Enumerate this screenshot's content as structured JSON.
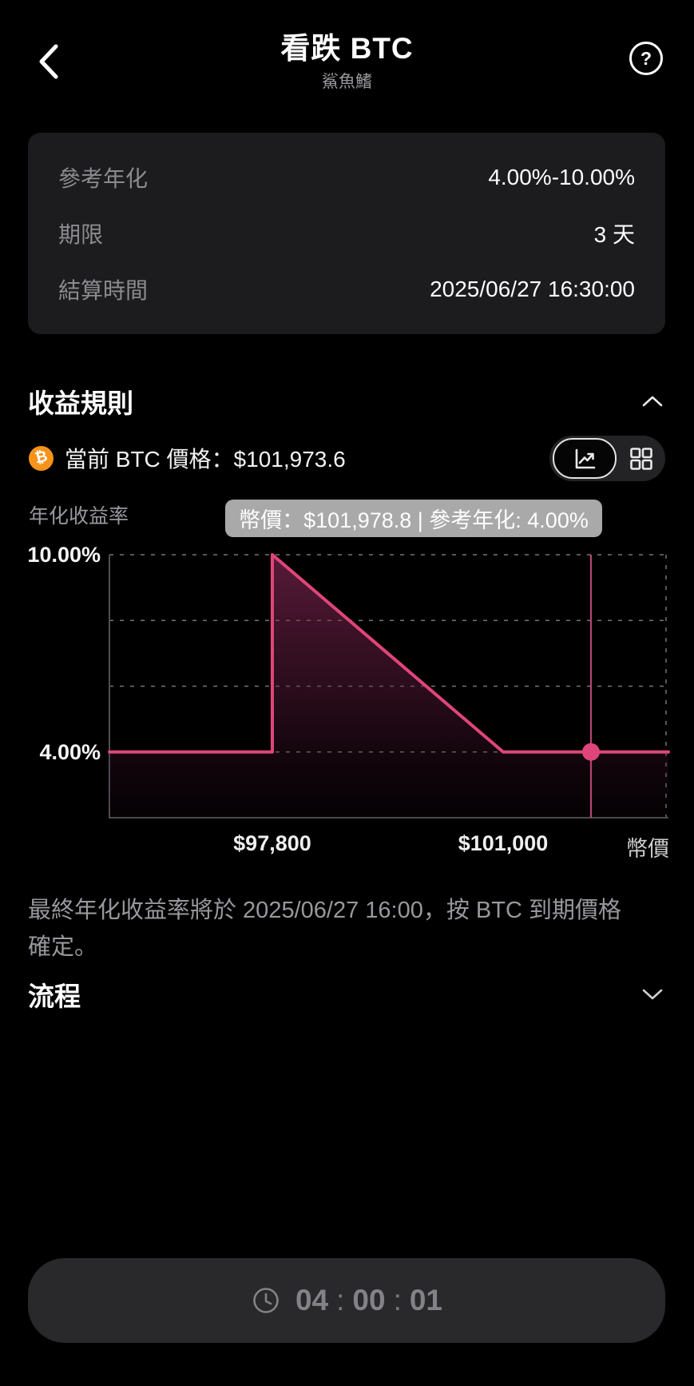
{
  "colors": {
    "accent_pink": "#e0457a",
    "marker_pink": "#b44672",
    "btc_orange": "#f7931a",
    "tooltip_bg": "#a9a9a9",
    "grid_gray": "#8a8a8a",
    "axis_gray": "#4f4f53"
  },
  "header": {
    "title": "看跌 BTC",
    "subtitle": "鯊魚鰭",
    "help_glyph": "?"
  },
  "icons": {
    "btc_glyph": "₿"
  },
  "info_card": {
    "rows": [
      {
        "label": "參考年化",
        "value": "4.00%-10.00%"
      },
      {
        "label": "期限",
        "value": "3 天"
      },
      {
        "label": "結算時間",
        "value": "2025/06/27 16:30:00"
      }
    ]
  },
  "rules_section": {
    "title": "收益規則",
    "current_price_text": "當前 BTC 價格：$101,973.6",
    "y_axis_title": "年化收益率",
    "tooltip_text": "幣價：$101,978.8 | 參考年化: 4.00%",
    "footnote": "最終年化收益率將於 2025/06/27 16:00，按 BTC 到期價格確定。"
  },
  "process_section": {
    "title": "流程"
  },
  "countdown": {
    "hours": "04",
    "minutes": "00",
    "seconds": "01",
    "separator": ":"
  },
  "chart_data": {
    "type": "area",
    "title": "年化收益率",
    "xlabel": "幣價",
    "ylim": [
      2,
      10
    ],
    "grid": true,
    "gridlines_y": [
      10,
      8,
      6,
      4
    ],
    "y_ticks": [
      {
        "y": 10,
        "label": "10.00%"
      },
      {
        "y": 4,
        "label": "4.00%"
      }
    ],
    "x_ticks": [
      {
        "x": 0.2914,
        "label": "$97,800"
      },
      {
        "x": 0.7043,
        "label": "$101,000"
      }
    ],
    "series": [
      {
        "name": "payoff",
        "points": [
          [
            0,
            4
          ],
          [
            0.2914,
            4
          ],
          [
            0.2914,
            10
          ],
          [
            0.7043,
            4
          ],
          [
            1,
            4
          ]
        ]
      }
    ],
    "marker": {
      "x": 0.8614,
      "y": 4
    },
    "right_guide_x": 0.9957,
    "legend_position": "none"
  }
}
